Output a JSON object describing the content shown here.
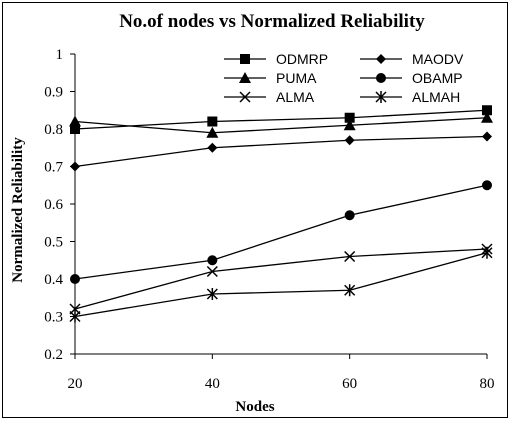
{
  "chart_data": {
    "type": "line",
    "title": "No.of nodes vs Normalized Reliability",
    "xlabel": "Nodes",
    "ylabel": "Normalized Reliability",
    "x": [
      20,
      40,
      60,
      80
    ],
    "ylim": [
      0.2,
      1
    ],
    "yticks": [
      "0.2",
      "0.3",
      "0.4",
      "0.5",
      "0.6",
      "0.7",
      "0.8",
      "0.9",
      "1"
    ],
    "xticks": [
      "20",
      "40",
      "60",
      "80"
    ],
    "grid": false,
    "legend_position": "top-right",
    "series": [
      {
        "name": "ODMRP",
        "marker": "square",
        "values": [
          0.8,
          0.82,
          0.83,
          0.85
        ]
      },
      {
        "name": "MAODV",
        "marker": "diamond",
        "values": [
          0.7,
          0.75,
          0.77,
          0.78
        ]
      },
      {
        "name": "PUMA",
        "marker": "triangle",
        "values": [
          0.82,
          0.79,
          0.81,
          0.83
        ]
      },
      {
        "name": "OBAMP",
        "marker": "circle",
        "values": [
          0.4,
          0.45,
          0.57,
          0.65
        ]
      },
      {
        "name": "ALMA",
        "marker": "x",
        "values": [
          0.32,
          0.42,
          0.46,
          0.48
        ]
      },
      {
        "name": "ALMAH",
        "marker": "star",
        "values": [
          0.3,
          0.36,
          0.37,
          0.47
        ]
      }
    ],
    "line_color": "#000000"
  }
}
